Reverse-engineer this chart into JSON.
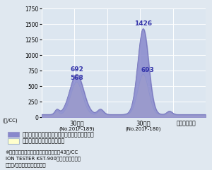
{
  "ylabel": "(個/CC)",
  "ylim": [
    0,
    1750
  ],
  "yticks": [
    0,
    250,
    500,
    750,
    1000,
    1250,
    1500,
    1750
  ],
  "bg_color": "#e0e8f0",
  "plot_bg_color": "#dce6f0",
  "grid_color": "#ffffff",
  "series1_color": "#8888cc",
  "series1_alpha": 0.85,
  "series2_color": "#ffffcc",
  "series2_alpha": 1.0,
  "series2_edge": "#aaccee",
  "label1": "水道水をコップに入れて森修焼の上にのせたもの",
  "label2": "水道水をコップに入れたもの",
  "peak1_label": "692",
  "peak2_label": "568",
  "peak3_label": "1426",
  "peak4_label": "693",
  "xlabel1": "30秒後",
  "xlabel1_sub": "(No.201F-189)",
  "xlabel2": "30分後",
  "xlabel2_sub": "(No.201F-180)",
  "xlabel3": "（静置時間）",
  "footnote1": "※測定時の室内マイナスイオン数は平均43個/CC",
  "footnote2": "ION TESTER KST-900型（神戸電波製）",
  "footnote3": "（測定/遠赤外線応用研究会）"
}
